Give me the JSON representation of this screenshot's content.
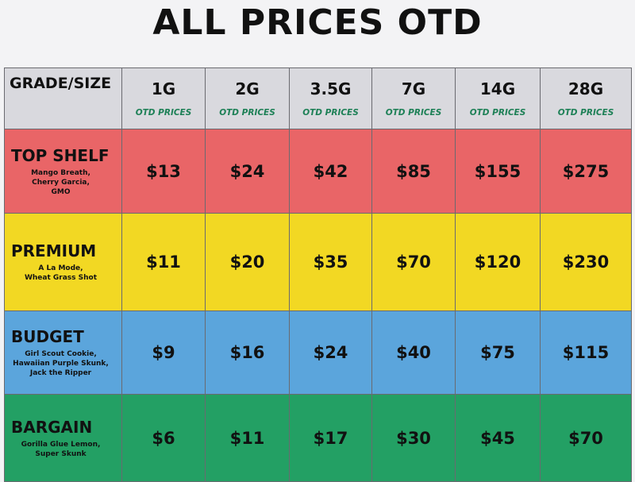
{
  "title": "ALL PRICES OTD",
  "table": {
    "corner": "GRADE/SIZE",
    "columns": [
      {
        "size": "1G",
        "note": "OTD PRICES"
      },
      {
        "size": "2G",
        "note": "OTD PRICES"
      },
      {
        "size": "3.5G",
        "note": "OTD PRICES"
      },
      {
        "size": "7G",
        "note": "OTD PRICES"
      },
      {
        "size": "14G",
        "note": "OTD PRICES"
      },
      {
        "size": "28G",
        "note": "OTD PRICES"
      }
    ],
    "rows": [
      {
        "grade": "TOP SHELF",
        "strains": [
          "Mango Breath,",
          "Cherry Garcia,",
          "GMO"
        ],
        "prices": [
          "$13",
          "$24",
          "$42",
          "$85",
          "$155",
          "$275"
        ]
      },
      {
        "grade": "PREMIUM",
        "strains": [
          "A La Mode,",
          "Wheat Grass Shot"
        ],
        "prices": [
          "$11",
          "$20",
          "$35",
          "$70",
          "$120",
          "$230"
        ]
      },
      {
        "grade": "BUDGET",
        "strains": [
          "Girl Scout Cookie,",
          "Hawaiian Purple Skunk,",
          "Jack the Ripper"
        ],
        "prices": [
          "$9",
          "$16",
          "$24",
          "$40",
          "$75",
          "$115"
        ]
      },
      {
        "grade": "BARGAIN",
        "strains": [
          "Gorilla Glue Lemon,",
          "Super Skunk"
        ],
        "prices": [
          "$6",
          "$11",
          "$17",
          "$30",
          "$45",
          "$70"
        ]
      }
    ]
  }
}
